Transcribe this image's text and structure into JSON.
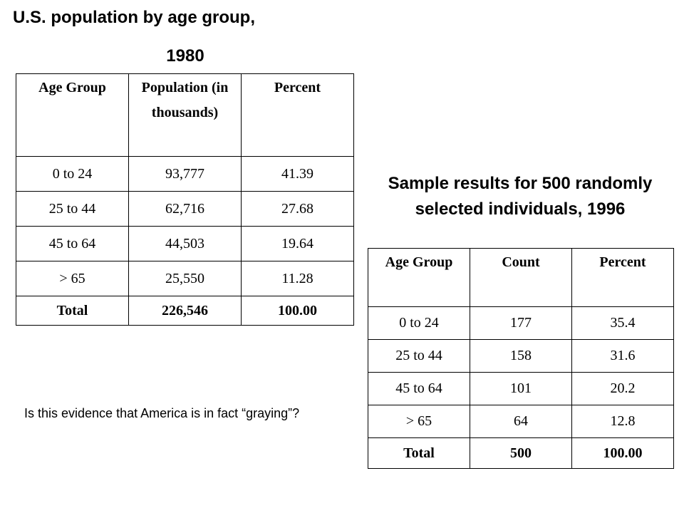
{
  "table1": {
    "title_line1": "U.S. population by age group,",
    "title_line2": "1980",
    "headers": [
      "Age Group",
      "Population (in thousands)",
      "Percent"
    ],
    "rows": [
      [
        "0 to 24",
        "93,777",
        "41.39"
      ],
      [
        "25 to 44",
        "62,716",
        "27.68"
      ],
      [
        "45 to 64",
        "44,503",
        "19.64"
      ],
      [
        "> 65",
        "25,550",
        "11.28"
      ]
    ],
    "total": [
      "Total",
      "226,546",
      "100.00"
    ]
  },
  "table2": {
    "title": "Sample results for 500 randomly selected individuals, 1996",
    "headers": [
      "Age Group",
      "Count",
      "Percent"
    ],
    "rows": [
      [
        "0 to 24",
        "177",
        "35.4"
      ],
      [
        "25 to 44",
        "158",
        "31.6"
      ],
      [
        "45 to 64",
        "101",
        "20.2"
      ],
      [
        "> 65",
        "64",
        "12.8"
      ]
    ],
    "total": [
      "Total",
      "500",
      "100.00"
    ]
  },
  "question": "Is this evidence that America is in fact “graying”?"
}
